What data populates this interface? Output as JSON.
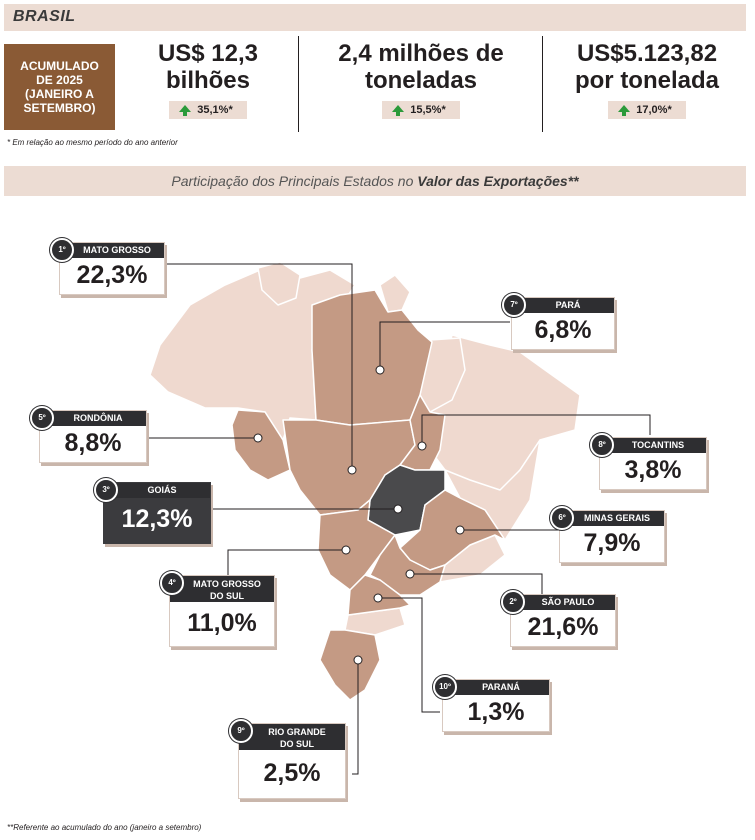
{
  "header": {
    "title": "BRASIL"
  },
  "accumulated_label": "ACUMULADO\nDE 2025\n(JANEIRO A\nSETEMBRO)",
  "kpis": [
    {
      "value": "US$ 12,3\nbilhões",
      "change": "35,1%*"
    },
    {
      "value": "2,4 milhões de\ntoneladas",
      "change": "15,5%*"
    },
    {
      "value": "US$5.123,82\npor tonelada",
      "change": "17,0%*"
    }
  ],
  "note_prev": "* Em relação ao mesmo período do ano anterior",
  "subtitle": {
    "pre": "Participação dos Principais Estados no ",
    "bold": "Valor das Exportações",
    "post": "**"
  },
  "chart_data": {
    "type": "map",
    "unit": "%",
    "states": [
      {
        "rank": "1º",
        "name": "MATO GROSSO",
        "value": 22.3,
        "display": "22,3%"
      },
      {
        "rank": "2º",
        "name": "SÃO PAULO",
        "value": 21.6,
        "display": "21,6%"
      },
      {
        "rank": "3º",
        "name": "GOIÁS",
        "value": 12.3,
        "display": "12,3%"
      },
      {
        "rank": "4º",
        "name": "MATO GROSSO\nDO SUL",
        "value": 11.0,
        "display": "11,0%"
      },
      {
        "rank": "5º",
        "name": "RONDÔNIA",
        "value": 8.8,
        "display": "8,8%"
      },
      {
        "rank": "6º",
        "name": "MINAS GERAIS",
        "value": 7.9,
        "display": "7,9%"
      },
      {
        "rank": "7º",
        "name": "PARÁ",
        "value": 6.8,
        "display": "6,8%"
      },
      {
        "rank": "8º",
        "name": "TOCANTINS",
        "value": 3.8,
        "display": "3,8%"
      },
      {
        "rank": "9º",
        "name": "RIO GRANDE\nDO SUL",
        "value": 2.5,
        "display": "2,5%"
      },
      {
        "rank": "10º",
        "name": "PARANÁ",
        "value": 1.3,
        "display": "1,3%"
      }
    ]
  },
  "colors": {
    "highlight": "#c49a84",
    "base": "#efd9cf",
    "dark": "#3b3b3e",
    "header": "#ecdcd3",
    "accent": "#8a5a35"
  },
  "note_period": "**Referente ao acumulado do ano (janeiro a setembro)"
}
